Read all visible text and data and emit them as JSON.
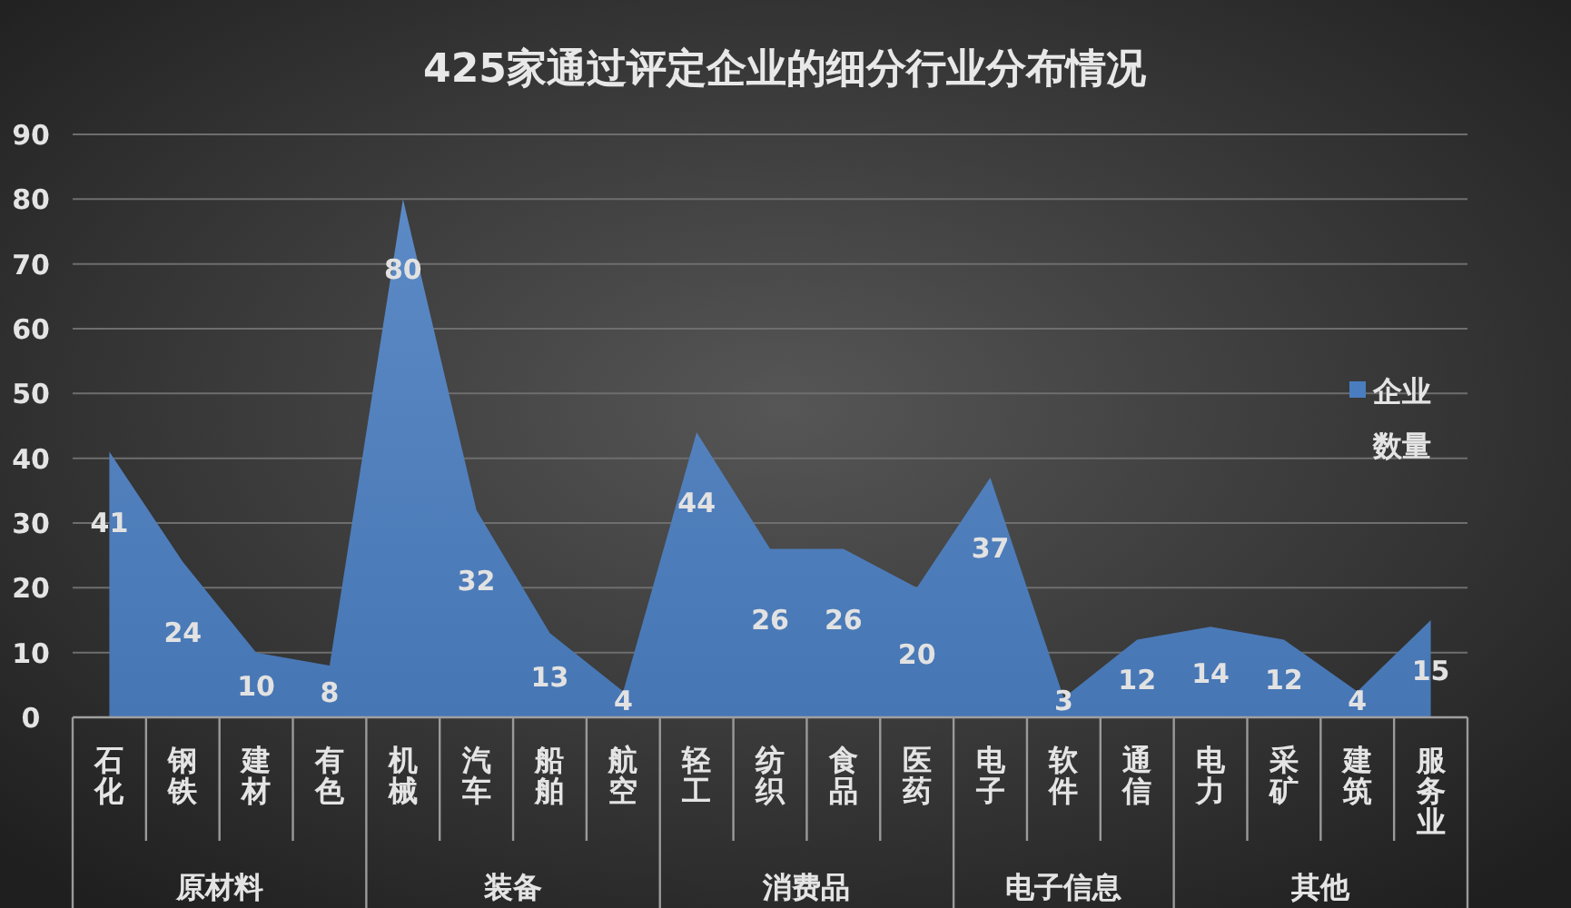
{
  "chart_data": {
    "type": "area",
    "title": "425家通过评定企业的细分行业分布情况",
    "categories": [
      "石化",
      "钢铁",
      "建材",
      "有色",
      "机械",
      "汽车",
      "船舶",
      "航空",
      "轻工",
      "纺织",
      "食品",
      "医药",
      "电子",
      "软件",
      "通信",
      "电力",
      "采矿",
      "建筑",
      "服务业"
    ],
    "series": [
      {
        "name": "企业数量",
        "color": "#4a7dc0",
        "values": [
          41,
          24,
          10,
          8,
          80,
          32,
          13,
          4,
          44,
          26,
          26,
          20,
          37,
          3,
          12,
          14,
          12,
          4,
          15
        ]
      }
    ],
    "ylim": [
      0,
      90
    ],
    "yticks": [
      0,
      10,
      20,
      30,
      40,
      50,
      60,
      70,
      80,
      90
    ],
    "grid": "y",
    "legend": "right",
    "data_labels": true,
    "annotations": [
      "原材料",
      "装备",
      "消费品",
      "电子信息",
      "其他"
    ]
  }
}
